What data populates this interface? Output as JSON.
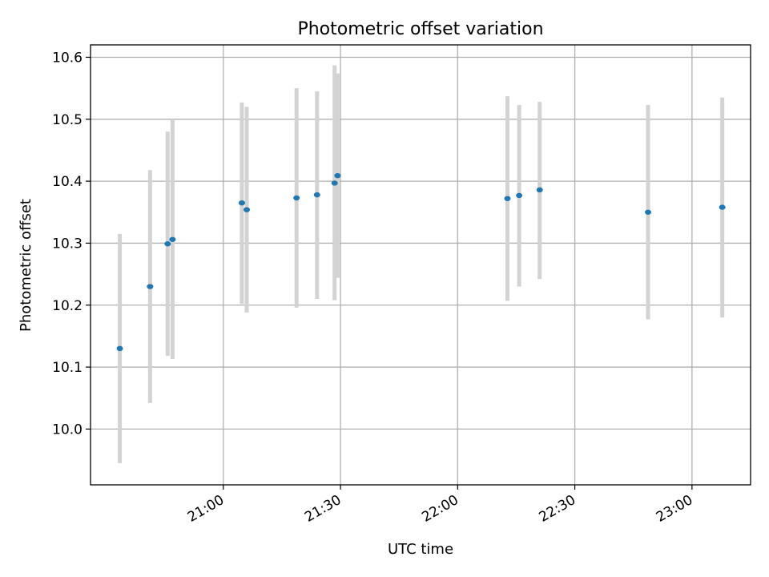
{
  "chart_data": {
    "type": "scatter",
    "title": "Photometric offset variation",
    "xlabel": "UTC time",
    "ylabel": "Photometric offset",
    "x_axis_type": "time",
    "xlim": [
      "20:26",
      "23:15"
    ],
    "ylim": [
      9.91,
      10.62
    ],
    "x_ticks": [
      "21:00",
      "21:30",
      "22:00",
      "22:30",
      "23:00"
    ],
    "y_ticks": [
      10.0,
      10.1,
      10.2,
      10.3,
      10.4,
      10.5,
      10.6
    ],
    "y_tick_labels": [
      "10.0",
      "10.1",
      "10.2",
      "10.3",
      "10.4",
      "10.5",
      "10.6"
    ],
    "x_tick_label_rotation_deg": 30,
    "grid": true,
    "legend": "none",
    "colors": {
      "point": "#1f77b4",
      "error_bar": "#d3d3d3",
      "grid": "#b0b0b0"
    },
    "series": [
      {
        "points": [
          {
            "x": "20:33:30",
            "y": 10.13,
            "y_low": 9.945,
            "y_high": 10.315
          },
          {
            "x": "20:41:15",
            "y": 10.23,
            "y_low": 10.042,
            "y_high": 10.418
          },
          {
            "x": "20:45:45",
            "y": 10.299,
            "y_low": 10.118,
            "y_high": 10.48
          },
          {
            "x": "20:47:00",
            "y": 10.306,
            "y_low": 10.113,
            "y_high": 10.5
          },
          {
            "x": "21:04:45",
            "y": 10.365,
            "y_low": 10.202,
            "y_high": 10.527
          },
          {
            "x": "21:06:00",
            "y": 10.354,
            "y_low": 10.188,
            "y_high": 10.52
          },
          {
            "x": "21:18:45",
            "y": 10.373,
            "y_low": 10.196,
            "y_high": 10.55
          },
          {
            "x": "21:24:00",
            "y": 10.378,
            "y_low": 10.21,
            "y_high": 10.545
          },
          {
            "x": "21:28:30",
            "y": 10.397,
            "y_low": 10.208,
            "y_high": 10.587
          },
          {
            "x": "21:29:15",
            "y": 10.409,
            "y_low": 10.244,
            "y_high": 10.574
          },
          {
            "x": "22:12:45",
            "y": 10.372,
            "y_low": 10.207,
            "y_high": 10.537
          },
          {
            "x": "22:15:45",
            "y": 10.377,
            "y_low": 10.23,
            "y_high": 10.523
          },
          {
            "x": "22:21:00",
            "y": 10.386,
            "y_low": 10.242,
            "y_high": 10.528
          },
          {
            "x": "22:48:45",
            "y": 10.35,
            "y_low": 10.177,
            "y_high": 10.523
          },
          {
            "x": "23:07:45",
            "y": 10.358,
            "y_low": 10.18,
            "y_high": 10.535
          }
        ]
      }
    ]
  }
}
